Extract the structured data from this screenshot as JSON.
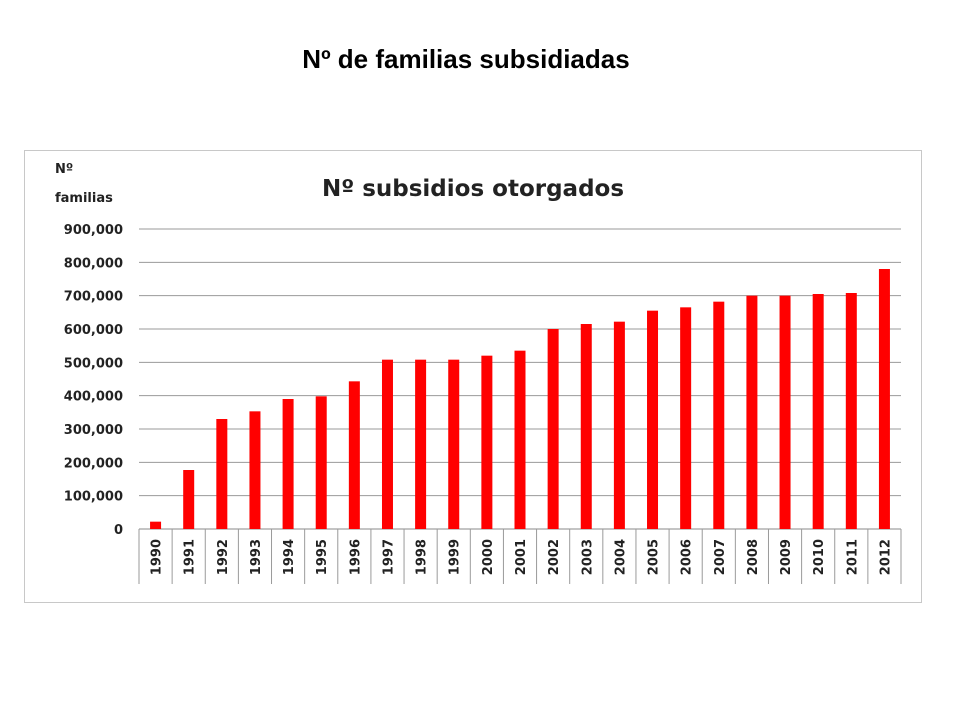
{
  "page_title": "Nº de familias subsidiadas",
  "chart_data": {
    "type": "bar",
    "title": "Nº subsidios otorgados",
    "ylabel_lines": [
      "Nº",
      "familias"
    ],
    "xlabel": "",
    "ylim": [
      0,
      900000
    ],
    "yticks": [
      "0",
      "100,000",
      "200,000",
      "300,000",
      "400,000",
      "500,000",
      "600,000",
      "700,000",
      "800,000",
      "900,000"
    ],
    "grid": true,
    "categories": [
      "1990",
      "1991",
      "1992",
      "1993",
      "1994",
      "1995",
      "1996",
      "1997",
      "1998",
      "1999",
      "2000",
      "2001",
      "2002",
      "2003",
      "2004",
      "2005",
      "2006",
      "2007",
      "2008",
      "2009",
      "2010",
      "2011",
      "2012"
    ],
    "values": [
      22000,
      177000,
      330000,
      353000,
      390000,
      398000,
      443000,
      508000,
      508000,
      508000,
      520000,
      535000,
      600000,
      615000,
      622000,
      655000,
      665000,
      682000,
      700000,
      700000,
      705000,
      708000,
      780000
    ],
    "bar_color": "#ff0000"
  }
}
